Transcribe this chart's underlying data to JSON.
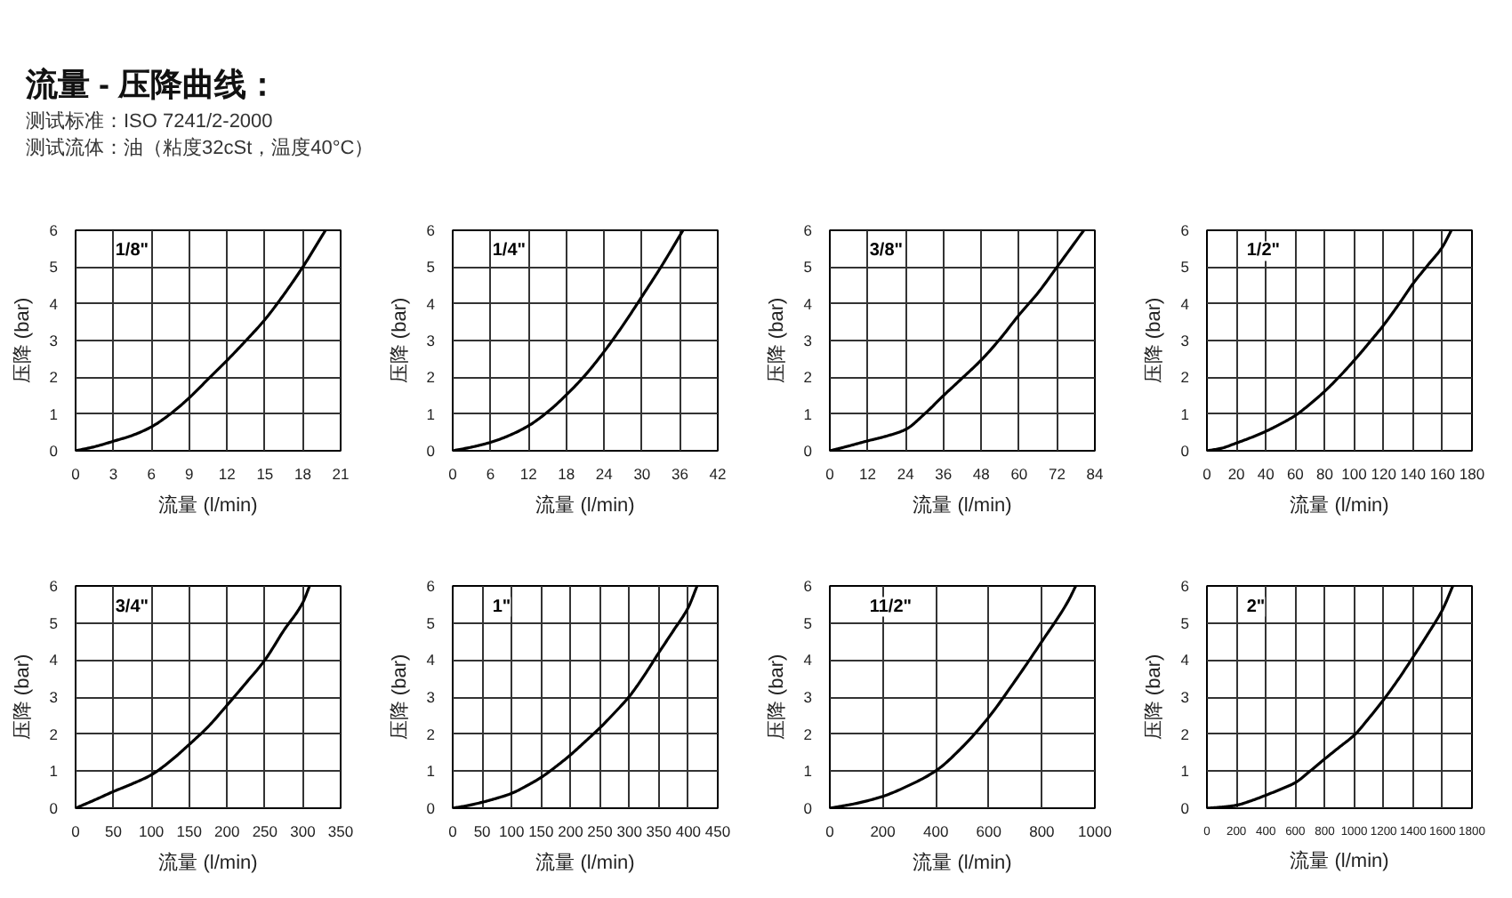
{
  "chart_data": [
    {
      "type": "line",
      "title": "流量 - 压降曲线：",
      "subtitle": "测试标准：ISO 7241/2-2000",
      "annotations": [
        "测试流体：油（粘度32cSt，温度40°C）"
      ],
      "xlabel": "流量 (l/min)",
      "ylabel": "压降 (bar)",
      "xlim": [
        0,
        21
      ],
      "xticks": [
        0,
        3,
        6,
        9,
        12,
        15,
        18,
        21
      ],
      "ylim": [
        0,
        6
      ],
      "yticks": [
        0,
        1,
        2,
        3,
        4,
        5,
        6
      ],
      "grid": true,
      "x": [
        0,
        1.5,
        3,
        4.5,
        6,
        7.5,
        9,
        10.5,
        12,
        13.5,
        15,
        16.5,
        18,
        19.8
      ],
      "series": [
        {
          "name": "1/8\"",
          "color": "#000000",
          "values": [
            0,
            0.11,
            0.26,
            0.42,
            0.65,
            1.0,
            1.44,
            1.95,
            2.46,
            3.0,
            3.57,
            4.25,
            5.0,
            6.0
          ]
        }
      ]
    },
    {
      "type": "line",
      "xlabel": "流量 (l/min)",
      "ylabel": "压降 (bar)",
      "xlim": [
        0,
        42
      ],
      "xticks": [
        0,
        6,
        12,
        18,
        24,
        30,
        36,
        42
      ],
      "ylim": [
        0,
        6
      ],
      "yticks": [
        0,
        1,
        2,
        3,
        4,
        5,
        6
      ],
      "grid": true,
      "x": [
        0,
        3,
        6,
        9,
        12,
        15,
        18,
        21,
        24,
        27,
        30,
        33,
        36.5
      ],
      "series": [
        {
          "name": "1/4\"",
          "color": "#000000",
          "values": [
            0,
            0.1,
            0.23,
            0.42,
            0.68,
            1.05,
            1.52,
            2.06,
            2.7,
            3.42,
            4.2,
            5.0,
            6.0
          ]
        }
      ]
    },
    {
      "type": "line",
      "xlabel": "流量 (l/min)",
      "ylabel": "压降 (bar)",
      "xlim": [
        0,
        84
      ],
      "xticks": [
        0,
        12,
        24,
        36,
        48,
        60,
        72,
        84
      ],
      "ylim": [
        0,
        6
      ],
      "yticks": [
        0,
        1,
        2,
        3,
        4,
        5,
        6
      ],
      "grid": true,
      "x": [
        0,
        6,
        12,
        18,
        24,
        30,
        36,
        42,
        48,
        54,
        60,
        66,
        72,
        80.5
      ],
      "series": [
        {
          "name": "3/8\"",
          "color": "#000000",
          "values": [
            0,
            0.13,
            0.27,
            0.4,
            0.58,
            1.0,
            1.5,
            1.98,
            2.47,
            3.05,
            3.7,
            4.3,
            5.0,
            6.0
          ]
        }
      ]
    },
    {
      "type": "line",
      "xlabel": "流量 (l/min)",
      "ylabel": "压降 (bar)",
      "xlim": [
        0,
        180
      ],
      "xticks": [
        0,
        20,
        40,
        60,
        80,
        100,
        120,
        140,
        160,
        180
      ],
      "ylim": [
        0,
        6
      ],
      "yticks": [
        0,
        1,
        2,
        3,
        4,
        5,
        6
      ],
      "grid": true,
      "x": [
        0,
        10,
        20,
        30,
        40,
        50,
        60,
        70,
        80,
        90,
        100,
        110,
        120,
        130,
        140,
        150,
        160,
        166
      ],
      "series": [
        {
          "name": "1/2\"",
          "color": "#000000",
          "values": [
            0,
            0.07,
            0.21,
            0.36,
            0.53,
            0.73,
            0.96,
            1.27,
            1.62,
            2.02,
            2.46,
            2.93,
            3.42,
            3.97,
            4.55,
            5.05,
            5.55,
            6.0
          ]
        }
      ]
    },
    {
      "type": "line",
      "xlabel": "流量 (l/min)",
      "ylabel": "压降 (bar)",
      "xlim": [
        0,
        350
      ],
      "xticks": [
        0,
        50,
        100,
        150,
        200,
        250,
        300,
        350
      ],
      "ylim": [
        0,
        6
      ],
      "yticks": [
        0,
        1,
        2,
        3,
        4,
        5,
        6
      ],
      "grid": true,
      "x": [
        0,
        25,
        50,
        75,
        100,
        125,
        150,
        175,
        200,
        225,
        250,
        275,
        300,
        309
      ],
      "series": [
        {
          "name": "3/4\"",
          "color": "#000000",
          "values": [
            0,
            0.22,
            0.45,
            0.66,
            0.9,
            1.27,
            1.72,
            2.2,
            2.78,
            3.38,
            4.0,
            4.8,
            5.55,
            6.0
          ]
        }
      ]
    },
    {
      "type": "line",
      "xlabel": "流量 (l/min)",
      "ylabel": "压降 (bar)",
      "xlim": [
        0,
        450
      ],
      "xticks": [
        0,
        50,
        100,
        150,
        200,
        250,
        300,
        350,
        400,
        450
      ],
      "ylim": [
        0,
        6
      ],
      "yticks": [
        0,
        1,
        2,
        3,
        4,
        5,
        6
      ],
      "grid": true,
      "x": [
        0,
        25,
        50,
        75,
        100,
        125,
        150,
        175,
        200,
        225,
        250,
        275,
        300,
        325,
        350,
        375,
        400,
        415
      ],
      "series": [
        {
          "name": "1\"",
          "color": "#000000",
          "values": [
            0,
            0.07,
            0.16,
            0.27,
            0.4,
            0.6,
            0.83,
            1.12,
            1.44,
            1.8,
            2.17,
            2.58,
            3.02,
            3.58,
            4.2,
            4.8,
            5.42,
            6.0
          ]
        }
      ]
    },
    {
      "type": "line",
      "xlabel": "流量 (l/min)",
      "ylabel": "压降 (bar)",
      "xlim": [
        0,
        1000
      ],
      "xticks": [
        0,
        200,
        400,
        600,
        800,
        1000
      ],
      "ylim": [
        0,
        6
      ],
      "yticks": [
        0,
        1,
        2,
        3,
        4,
        5,
        6
      ],
      "grid": true,
      "x": [
        0,
        100,
        200,
        300,
        400,
        500,
        600,
        700,
        800,
        900,
        928
      ],
      "series": [
        {
          "name": "11/2\"",
          "color": "#000000",
          "values": [
            0,
            0.13,
            0.32,
            0.62,
            1.01,
            1.65,
            2.46,
            3.45,
            4.5,
            5.6,
            6.0
          ]
        }
      ]
    },
    {
      "type": "line",
      "xlabel": "流量 (l/min)",
      "ylabel": "压降 (bar)",
      "xlim": [
        0,
        1800
      ],
      "xticks": [
        0,
        200,
        400,
        600,
        800,
        1000,
        1200,
        1400,
        1600,
        1800
      ],
      "ylim": [
        0,
        6
      ],
      "yticks": [
        0,
        1,
        2,
        3,
        4,
        5,
        6
      ],
      "grid": true,
      "x": [
        0,
        100,
        200,
        300,
        400,
        500,
        600,
        700,
        800,
        900,
        1000,
        1100,
        1200,
        1300,
        1400,
        1500,
        1600,
        1670
      ],
      "series": [
        {
          "name": "2\"",
          "color": "#000000",
          "values": [
            0,
            0.03,
            0.08,
            0.2,
            0.35,
            0.51,
            0.69,
            1.0,
            1.33,
            1.65,
            1.97,
            2.43,
            2.93,
            3.48,
            4.08,
            4.7,
            5.36,
            6.0
          ]
        }
      ]
    }
  ]
}
